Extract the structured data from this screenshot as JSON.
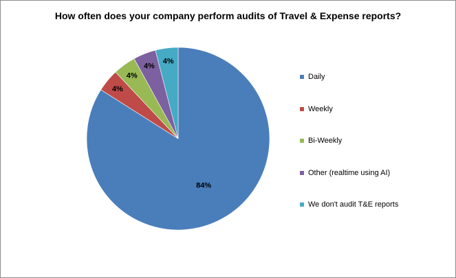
{
  "chart_data": {
    "type": "pie",
    "title": "How often does your company perform audits of Travel & Expense reports?",
    "categories": [
      "Daily",
      "Weekly",
      "Bi-Weekly",
      "Other (realtime using AI)",
      "We don't audit T&E reports"
    ],
    "values": [
      84,
      4,
      4,
      4,
      4
    ],
    "data_labels": [
      "84%",
      "4%",
      "4%",
      "4%",
      "4%"
    ],
    "colors": [
      "#4a7ebb",
      "#be4b48",
      "#98b954",
      "#7d60a0",
      "#46aac5"
    ],
    "start_angle_deg": 0,
    "direction": "clockwise",
    "legend_position": "right",
    "grid": false
  }
}
